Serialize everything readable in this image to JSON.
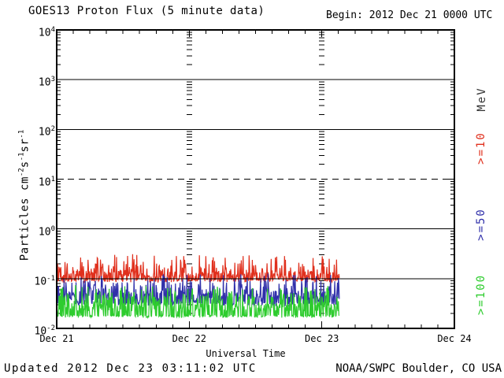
{
  "header": {
    "title": "GOES13 Proton Flux (5 minute data)",
    "begin_label": "Begin: 2012 Dec 21 0000 UTC"
  },
  "footer": {
    "updated": "Updated 2012 Dec 23 03:11:02 UTC",
    "credit": "NOAA/SWPC Boulder, CO USA"
  },
  "axes": {
    "x_title": "Universal Time",
    "y_title_parts": [
      {
        "t": "Particles cm"
      },
      {
        "t": "-2",
        "sup": true
      },
      {
        "t": "s"
      },
      {
        "t": "-1",
        "sup": true
      },
      {
        "t": "sr"
      },
      {
        "t": "-1",
        "sup": true
      }
    ],
    "y_ticks": [
      {
        "text": "10",
        "exp": "4",
        "value": 4
      },
      {
        "text": "10",
        "exp": "3",
        "value": 3
      },
      {
        "text": "10",
        "exp": "2",
        "value": 2
      },
      {
        "text": "10",
        "exp": "1",
        "value": 1
      },
      {
        "text": "10",
        "exp": "0",
        "value": 0
      },
      {
        "text": "10",
        "exp": "-1",
        "value": -1
      },
      {
        "text": "10",
        "exp": "-2",
        "value": -2
      }
    ],
    "x_ticks": [
      "Dec 21",
      "Dec 22",
      "Dec 23",
      "Dec 24"
    ]
  },
  "legend": {
    "unit": "MeV",
    "unit_color": "#333333",
    "entries": [
      {
        "label": ">=10",
        "color": "#e0301d"
      },
      {
        "label": ">=50",
        "color": "#3030aa"
      },
      {
        "label": ">=100",
        "color": "#2ecc2e"
      }
    ]
  },
  "chart_data": {
    "type": "line",
    "title": "GOES13 Proton Flux (5 minute data)",
    "xlabel": "Universal Time",
    "ylabel": "Particles cm⁻²s⁻¹sr⁻¹",
    "y_scale": "log10",
    "y_log_range": [
      -2,
      4
    ],
    "x_range_days": 3,
    "x_tick_labels": [
      "Dec 21",
      "Dec 22",
      "Dec 23",
      "Dec 24"
    ],
    "x_minor_tick_hours": 3,
    "grid": {
      "solid_exponents": [
        3,
        2,
        0,
        -1
      ],
      "dashed_exponents": [
        1
      ]
    },
    "data_start": "2012 Dec 21 0000 UTC",
    "data_end": "2012 Dec 23 0310 UTC",
    "sample_interval_minutes": 5,
    "duration_minutes": 3070,
    "seed": 20121223,
    "series": [
      {
        "id": "ge10",
        "name": ">=10 MeV",
        "color": "#e0301d",
        "levels": {
          "baseline": 0.085,
          "typical_max": 0.2,
          "peak": 0.33
        },
        "gen": {
          "base_log": -1.08,
          "jitter": 0.04,
          "branches": [
            [
              0.05,
              0.42,
              0.12
            ],
            [
              0.25,
              0.2,
              0.18
            ],
            [
              0.6,
              0.07,
              0.13
            ],
            [
              1.0,
              0.0,
              0.05
            ]
          ]
        }
      },
      {
        "id": "ge50",
        "name": ">=50 MeV",
        "color": "#3030aa",
        "levels": {
          "baseline": 0.028,
          "typical_max": 0.09,
          "peak": 0.13
        },
        "gen": {
          "base_log": -1.56,
          "jitter": 0.06,
          "branches": [
            [
              0.06,
              0.5,
              0.12
            ],
            [
              0.28,
              0.28,
              0.2
            ],
            [
              0.62,
              0.1,
              0.18
            ],
            [
              1.0,
              0.0,
              0.06
            ]
          ]
        }
      },
      {
        "id": "ge100",
        "name": ">=100 MeV",
        "color": "#2ecc2e",
        "levels": {
          "baseline": 0.017,
          "typical_max": 0.06,
          "peak": 0.09
        },
        "gen": {
          "base_log": -1.79,
          "jitter": 0.03,
          "branches": [
            [
              0.05,
              0.52,
              0.12
            ],
            [
              0.28,
              0.3,
              0.2
            ],
            [
              0.6,
              0.12,
              0.16
            ],
            [
              1.0,
              0.0,
              0.04
            ]
          ]
        }
      }
    ]
  }
}
